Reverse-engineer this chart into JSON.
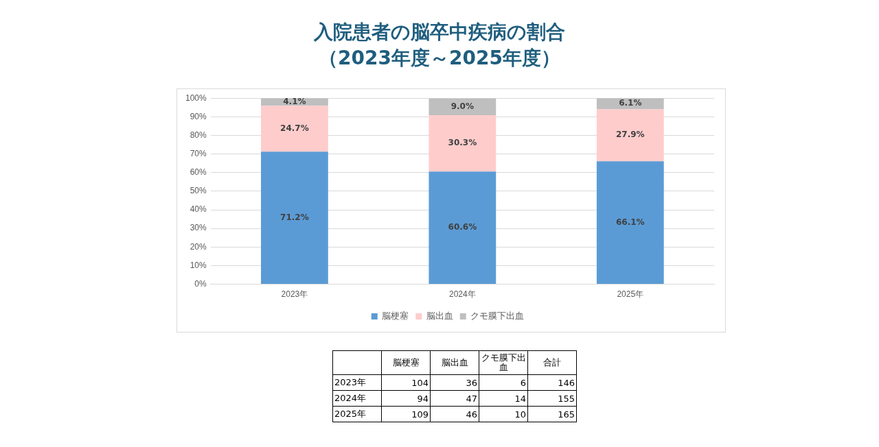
{
  "chart_data": [
    {
      "type": "bar",
      "title": "入院患者の脳卒中疾病の割合",
      "subtitle": "（2023年度～2025年度）",
      "stacked": true,
      "categories": [
        "2023年",
        "2024年",
        "2025年"
      ],
      "series": [
        {
          "name": "脳梗塞",
          "color": "#5b9bd5",
          "values": [
            71.2,
            60.6,
            66.1
          ],
          "value_labels": [
            "71.2%",
            "60.6%",
            "66.1%"
          ]
        },
        {
          "name": "脳出血",
          "color": "#ffcccc",
          "values": [
            24.7,
            30.3,
            27.9
          ],
          "value_labels": [
            "24.7%",
            "30.3%",
            "27.9%"
          ]
        },
        {
          "name": "クモ膜下出血",
          "color": "#bfbfbf",
          "values": [
            4.1,
            9.0,
            6.1
          ],
          "value_labels": [
            "4.1%",
            "9.0%",
            "6.1%"
          ]
        }
      ],
      "ylim": [
        0,
        100
      ],
      "yticks": [
        {
          "value": 0,
          "label": "0%"
        },
        {
          "value": 10,
          "label": "10%"
        },
        {
          "value": 20,
          "label": "20%"
        },
        {
          "value": 30,
          "label": "30%"
        },
        {
          "value": 40,
          "label": "40%"
        },
        {
          "value": 50,
          "label": "50%"
        },
        {
          "value": 60,
          "label": "60%"
        },
        {
          "value": 70,
          "label": "70%"
        },
        {
          "value": 80,
          "label": "80%"
        },
        {
          "value": 90,
          "label": "90%"
        },
        {
          "value": 100,
          "label": "100%"
        }
      ],
      "grid": "y",
      "legend": "bottom"
    },
    {
      "type": "heatmap",
      "data_labels": true,
      "categories": [
        "脳梗塞",
        "脳出血",
        "クモ膜下出血",
        "合計"
      ],
      "y_categories": [
        "2023年",
        "2024年",
        "2025年"
      ],
      "cells": [
        [
          104,
          36,
          6,
          146
        ],
        [
          94,
          47,
          14,
          155
        ],
        [
          109,
          46,
          10,
          165
        ]
      ]
    }
  ]
}
